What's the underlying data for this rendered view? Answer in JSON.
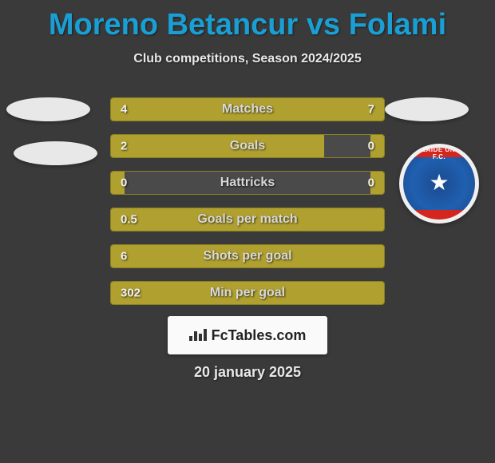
{
  "title": "Moreno Betancur vs Folami",
  "subtitle": "Club competitions, Season 2024/2025",
  "date": "20 january 2025",
  "logo_text": "FcTables.com",
  "badge_text": "ADELAIDE UNITED F.C.",
  "colors": {
    "background": "#3a3a3a",
    "title": "#1a9fd4",
    "bar_fill": "#b0a030",
    "bar_bg": "#4a4a4a",
    "bar_border": "#8a8020",
    "text_light": "#e8e8e8",
    "badge_red": "#d4261e",
    "badge_blue": "#1a4a8f"
  },
  "bars": [
    {
      "label": "Matches",
      "left": "4",
      "right": "7",
      "left_pct": 36,
      "right_pct": 64
    },
    {
      "label": "Goals",
      "left": "2",
      "right": "0",
      "left_pct": 78,
      "right_pct": 5
    },
    {
      "label": "Hattricks",
      "left": "0",
      "right": "0",
      "left_pct": 5,
      "right_pct": 5
    },
    {
      "label": "Goals per match",
      "left": "0.5",
      "right": "",
      "left_pct": 100,
      "right_pct": 0
    },
    {
      "label": "Shots per goal",
      "left": "6",
      "right": "",
      "left_pct": 100,
      "right_pct": 0
    },
    {
      "label": "Min per goal",
      "left": "302",
      "right": "",
      "left_pct": 100,
      "right_pct": 0
    }
  ]
}
